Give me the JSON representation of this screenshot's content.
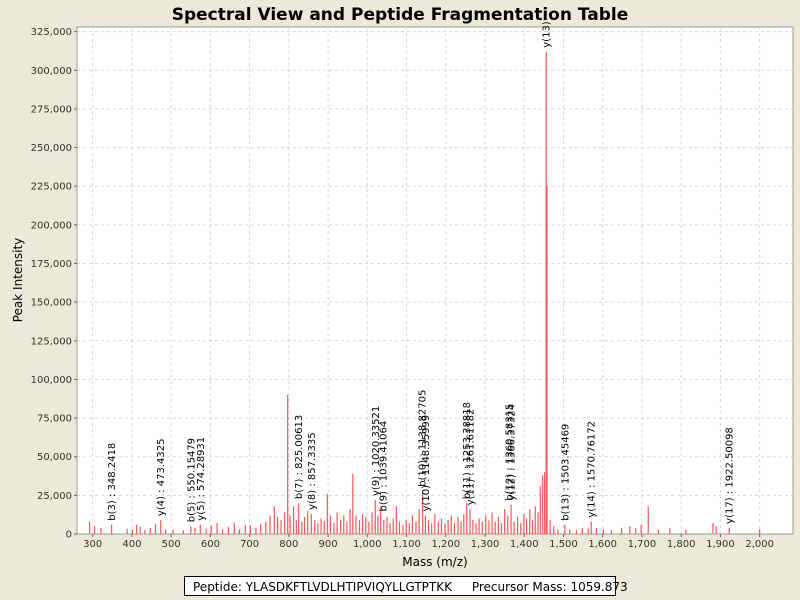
{
  "chart_data": {
    "type": "bar",
    "title": "Spectral View and Peptide Fragmentation Table",
    "xlabel": "Mass (m/z)",
    "ylabel": "Peak Intensity",
    "xlim": [
      260,
      2085
    ],
    "ylim": [
      0,
      328000
    ],
    "x_ticks": [
      300,
      400,
      500,
      600,
      700,
      800,
      900,
      1000,
      1100,
      1200,
      1300,
      1400,
      1500,
      1600,
      1700,
      1800,
      1900,
      2000
    ],
    "x_tick_labels": [
      "300",
      "400",
      "500",
      "600",
      "700",
      "800",
      "900",
      "1,000",
      "1,100",
      "1,200",
      "1,300",
      "1,400",
      "1,500",
      "1,600",
      "1,700",
      "1,800",
      "1,900",
      "2,000"
    ],
    "y_ticks": [
      0,
      25000,
      50000,
      75000,
      100000,
      125000,
      150000,
      175000,
      200000,
      225000,
      250000,
      275000,
      300000,
      325000
    ],
    "y_tick_labels": [
      "0",
      "25,000",
      "50,000",
      "75,000",
      "100,000",
      "125,000",
      "150,000",
      "175,000",
      "200,000",
      "225,000",
      "250,000",
      "275,000",
      "300,000",
      "325,000"
    ],
    "grid": true,
    "series_color": "#ff5555",
    "peaks": [
      {
        "mz": 292,
        "i": 8000
      },
      {
        "mz": 305,
        "i": 5000
      },
      {
        "mz": 321,
        "i": 4000
      },
      {
        "mz": 348.2,
        "i": 6000
      },
      {
        "mz": 388,
        "i": 3500
      },
      {
        "mz": 401,
        "i": 3000
      },
      {
        "mz": 412,
        "i": 6000
      },
      {
        "mz": 421,
        "i": 4500
      },
      {
        "mz": 433,
        "i": 2500
      },
      {
        "mz": 447,
        "i": 4000
      },
      {
        "mz": 460,
        "i": 6500
      },
      {
        "mz": 473.4,
        "i": 9000
      },
      {
        "mz": 486,
        "i": 3000
      },
      {
        "mz": 505,
        "i": 3000
      },
      {
        "mz": 531,
        "i": 2500
      },
      {
        "mz": 550.2,
        "i": 5000
      },
      {
        "mz": 561,
        "i": 4000
      },
      {
        "mz": 574.3,
        "i": 6000
      },
      {
        "mz": 589,
        "i": 3500
      },
      {
        "mz": 602,
        "i": 5500
      },
      {
        "mz": 617,
        "i": 7000
      },
      {
        "mz": 631,
        "i": 3000
      },
      {
        "mz": 646,
        "i": 4500
      },
      {
        "mz": 661,
        "i": 7500
      },
      {
        "mz": 674,
        "i": 3000
      },
      {
        "mz": 689,
        "i": 6000
      },
      {
        "mz": 702,
        "i": 5500
      },
      {
        "mz": 716,
        "i": 4000
      },
      {
        "mz": 728,
        "i": 6500
      },
      {
        "mz": 741,
        "i": 8000
      },
      {
        "mz": 752,
        "i": 12000
      },
      {
        "mz": 763,
        "i": 18000
      },
      {
        "mz": 771,
        "i": 11000
      },
      {
        "mz": 780,
        "i": 9000
      },
      {
        "mz": 789,
        "i": 14000
      },
      {
        "mz": 797,
        "i": 90000
      },
      {
        "mz": 803,
        "i": 12000
      },
      {
        "mz": 812,
        "i": 18000
      },
      {
        "mz": 819,
        "i": 9000
      },
      {
        "mz": 825,
        "i": 20000
      },
      {
        "mz": 833,
        "i": 8000
      },
      {
        "mz": 840,
        "i": 11000
      },
      {
        "mz": 848,
        "i": 15000
      },
      {
        "mz": 857.3,
        "i": 13000
      },
      {
        "mz": 866,
        "i": 9000
      },
      {
        "mz": 874,
        "i": 7000
      },
      {
        "mz": 882,
        "i": 10000
      },
      {
        "mz": 890,
        "i": 8500
      },
      {
        "mz": 898,
        "i": 26000
      },
      {
        "mz": 906,
        "i": 12000
      },
      {
        "mz": 915,
        "i": 7000
      },
      {
        "mz": 923,
        "i": 14000
      },
      {
        "mz": 932,
        "i": 9000
      },
      {
        "mz": 940,
        "i": 12000
      },
      {
        "mz": 948,
        "i": 8000
      },
      {
        "mz": 956,
        "i": 16000
      },
      {
        "mz": 963,
        "i": 39000
      },
      {
        "mz": 971,
        "i": 12000
      },
      {
        "mz": 980,
        "i": 9000
      },
      {
        "mz": 988,
        "i": 13000
      },
      {
        "mz": 996,
        "i": 11000
      },
      {
        "mz": 1004,
        "i": 8000
      },
      {
        "mz": 1012,
        "i": 14000
      },
      {
        "mz": 1020.3,
        "i": 22000
      },
      {
        "mz": 1027,
        "i": 12000
      },
      {
        "mz": 1034,
        "i": 18000
      },
      {
        "mz": 1042,
        "i": 9000
      },
      {
        "mz": 1050,
        "i": 11000
      },
      {
        "mz": 1058,
        "i": 7000
      },
      {
        "mz": 1066,
        "i": 10000
      },
      {
        "mz": 1074,
        "i": 18000
      },
      {
        "mz": 1082,
        "i": 8000
      },
      {
        "mz": 1091,
        "i": 6000
      },
      {
        "mz": 1099,
        "i": 9000
      },
      {
        "mz": 1107,
        "i": 7000
      },
      {
        "mz": 1115,
        "i": 12000
      },
      {
        "mz": 1124,
        "i": 8000
      },
      {
        "mz": 1132,
        "i": 16000
      },
      {
        "mz": 1141,
        "i": 28000
      },
      {
        "mz": 1148,
        "i": 12000
      },
      {
        "mz": 1156,
        "i": 9000
      },
      {
        "mz": 1164,
        "i": 7000
      },
      {
        "mz": 1172,
        "i": 13000
      },
      {
        "mz": 1181,
        "i": 8000
      },
      {
        "mz": 1189,
        "i": 10000
      },
      {
        "mz": 1198,
        "i": 7000
      },
      {
        "mz": 1206,
        "i": 9000
      },
      {
        "mz": 1214,
        "i": 12000
      },
      {
        "mz": 1222,
        "i": 7000
      },
      {
        "mz": 1231,
        "i": 11000
      },
      {
        "mz": 1239,
        "i": 8000
      },
      {
        "mz": 1246,
        "i": 13000
      },
      {
        "mz": 1253.4,
        "i": 20000
      },
      {
        "mz": 1261.6,
        "i": 16000
      },
      {
        "mz": 1269,
        "i": 9000
      },
      {
        "mz": 1277,
        "i": 7000
      },
      {
        "mz": 1285,
        "i": 10000
      },
      {
        "mz": 1293,
        "i": 8000
      },
      {
        "mz": 1302,
        "i": 12000
      },
      {
        "mz": 1310,
        "i": 9000
      },
      {
        "mz": 1318,
        "i": 14000
      },
      {
        "mz": 1326,
        "i": 8000
      },
      {
        "mz": 1334,
        "i": 11000
      },
      {
        "mz": 1342,
        "i": 7000
      },
      {
        "mz": 1350,
        "i": 16000
      },
      {
        "mz": 1358,
        "i": 12000
      },
      {
        "mz": 1366.4,
        "i": 19000
      },
      {
        "mz": 1374,
        "i": 8000
      },
      {
        "mz": 1383,
        "i": 11000
      },
      {
        "mz": 1391,
        "i": 7000
      },
      {
        "mz": 1399,
        "i": 13000
      },
      {
        "mz": 1406,
        "i": 10000
      },
      {
        "mz": 1414,
        "i": 16000
      },
      {
        "mz": 1421,
        "i": 9000
      },
      {
        "mz": 1428,
        "i": 18000
      },
      {
        "mz": 1435,
        "i": 14000
      },
      {
        "mz": 1441,
        "i": 31000
      },
      {
        "mz": 1447,
        "i": 38000
      },
      {
        "mz": 1452,
        "i": 40000
      },
      {
        "mz": 1456,
        "i": 312000
      },
      {
        "mz": 1458,
        "i": 225000
      },
      {
        "mz": 1466,
        "i": 9000
      },
      {
        "mz": 1475,
        "i": 5000
      },
      {
        "mz": 1486,
        "i": 3000
      },
      {
        "mz": 1503.5,
        "i": 6000
      },
      {
        "mz": 1516,
        "i": 3000
      },
      {
        "mz": 1533,
        "i": 2500
      },
      {
        "mz": 1548,
        "i": 4000
      },
      {
        "mz": 1563,
        "i": 3500
      },
      {
        "mz": 1570.8,
        "i": 8000
      },
      {
        "mz": 1584,
        "i": 4000
      },
      {
        "mz": 1602,
        "i": 3000
      },
      {
        "mz": 1622,
        "i": 2500
      },
      {
        "mz": 1648,
        "i": 4000
      },
      {
        "mz": 1669,
        "i": 5000
      },
      {
        "mz": 1684,
        "i": 4000
      },
      {
        "mz": 1698,
        "i": 6000
      },
      {
        "mz": 1716,
        "i": 18000
      },
      {
        "mz": 1742,
        "i": 3000
      },
      {
        "mz": 1771,
        "i": 4000
      },
      {
        "mz": 1812,
        "i": 3000
      },
      {
        "mz": 1881,
        "i": 7000
      },
      {
        "mz": 1889,
        "i": 5000
      },
      {
        "mz": 1922.5,
        "i": 4000
      },
      {
        "mz": 2000,
        "i": 3000
      }
    ],
    "annotations": [
      {
        "mz": 348.2418,
        "i": 6000,
        "label": "b(3) : 348.2418"
      },
      {
        "mz": 473.4325,
        "i": 9000,
        "label": "y(4) : 473.4325"
      },
      {
        "mz": 550.15479,
        "i": 5000,
        "label": "b(5) : 550.15479"
      },
      {
        "mz": 574.28931,
        "i": 6000,
        "label": "y(5) : 574.28931"
      },
      {
        "mz": 825.00613,
        "i": 20000,
        "label": "b(7) : 825.00613"
      },
      {
        "mz": 857.3335,
        "i": 13000,
        "label": "y(8) : 857.3335"
      },
      {
        "mz": 1020.33521,
        "i": 22000,
        "label": "y(9) : 1020.33521"
      },
      {
        "mz": 1039.41064,
        "i": 12000,
        "label": "b(9) : 1039.41064"
      },
      {
        "mz": 1138.82705,
        "i": 28000,
        "label": "b(10) : 1138.82705"
      },
      {
        "mz": 1148.35999,
        "i": 12000,
        "label": "y(10) : 1148.35999"
      },
      {
        "mz": 1253.38818,
        "i": 20000,
        "label": "b(11) : 1253.38818"
      },
      {
        "mz": 1261.61182,
        "i": 16000,
        "label": "y(11) : 1261.61182"
      },
      {
        "mz": 1360.58315,
        "i": 19000,
        "label": "b(12) : 1360.58315"
      },
      {
        "mz": 1366.37324,
        "i": 19000,
        "label": "y(12) : 1366.37324"
      },
      {
        "mz": 1456.0,
        "i": 312000,
        "label": "y(13)"
      },
      {
        "mz": 1503.45469,
        "i": 6000,
        "label": "b(13) : 1503.45469"
      },
      {
        "mz": 1570.76172,
        "i": 8000,
        "label": "y(14) : 1570.76172"
      },
      {
        "mz": 1922.50098,
        "i": 4000,
        "label": "y(17) : 1922.50098"
      }
    ]
  },
  "legend": {
    "peptide": "Peptide: YLASDKFTLVDLHTIPVIQYLLGTPTKK",
    "precursor": "Precursor Mass: 1059.873"
  }
}
